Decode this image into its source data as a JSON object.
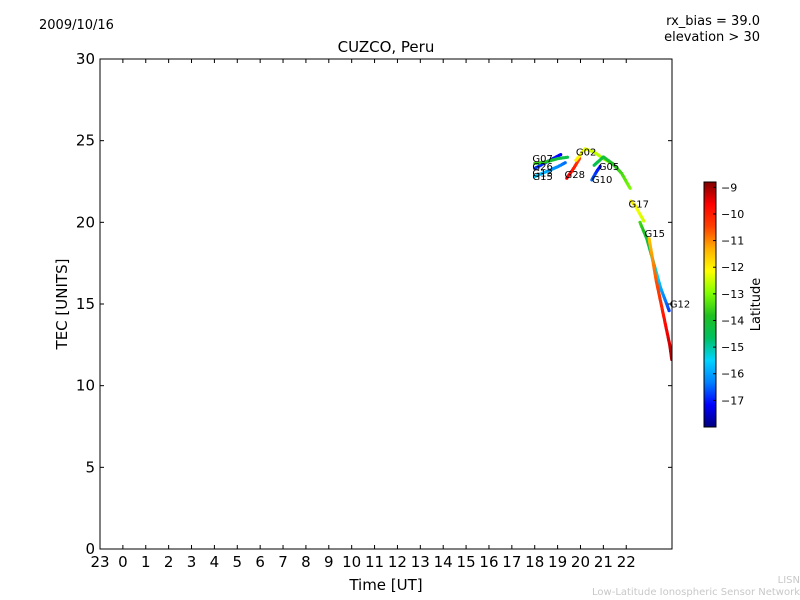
{
  "header": {
    "date": "2009/10/16",
    "title": "CUZCO, Peru",
    "rx_bias": "rx_bias = 39.0",
    "elevation": "elevation > 30"
  },
  "footer": {
    "line1": "LISN",
    "line2": "Low-Latitude Ionospheric Sensor Network"
  },
  "chart_data": {
    "type": "scatter",
    "title": "CUZCO, Peru",
    "xlabel": "Time [UT]",
    "ylabel": "TEC [UNITS]",
    "xlim": [
      -1,
      24
    ],
    "ylim": [
      0,
      30
    ],
    "x_tick_labels": [
      "23",
      "0",
      "1",
      "2",
      "3",
      "4",
      "5",
      "6",
      "7",
      "8",
      "9",
      "10",
      "11",
      "12",
      "13",
      "14",
      "15",
      "16",
      "17",
      "18",
      "19",
      "20",
      "21",
      "22"
    ],
    "y_ticks": [
      0,
      5,
      10,
      15,
      20,
      25,
      30
    ],
    "grid": false,
    "colorbar": {
      "label": "Latitude",
      "min": -18,
      "max": -8.8,
      "ticks": [
        -9,
        -10,
        -11,
        -12,
        -13,
        -14,
        -15,
        -16,
        -17
      ],
      "colors": [
        "#00007f",
        "#0000ff",
        "#0080ff",
        "#00d4ff",
        "#00c060",
        "#20c020",
        "#80ff00",
        "#ffff00",
        "#ffb000",
        "#ff4000",
        "#ff0000",
        "#7f0000"
      ]
    },
    "series": [
      {
        "name": "G07",
        "lat_start": -16.8,
        "lat_end": -17.2,
        "x": [
          18.0,
          18.4,
          18.8,
          19.2
        ],
        "y": [
          23.3,
          23.6,
          23.9,
          24.2
        ]
      },
      {
        "name": "G13",
        "lat_start": -15.5,
        "lat_end": -16.5,
        "x": [
          18.0,
          18.5,
          19.0,
          19.4
        ],
        "y": [
          22.8,
          23.1,
          23.4,
          23.7
        ]
      },
      {
        "name": "G26",
        "lat_start": -13.5,
        "lat_end": -14.5,
        "x": [
          18.0,
          18.5,
          19.0,
          19.5
        ],
        "y": [
          23.6,
          23.7,
          23.9,
          24.0
        ]
      },
      {
        "name": "G28",
        "lat_start": -9.5,
        "lat_end": -10.5,
        "x": [
          19.4,
          19.7,
          20.0
        ],
        "y": [
          22.7,
          23.3,
          24.0
        ]
      },
      {
        "name": "G02",
        "lat_start": -12.0,
        "lat_end": -13.0,
        "x": [
          19.8,
          20.2,
          20.6,
          21.0,
          21.5
        ],
        "y": [
          23.8,
          24.5,
          24.3,
          23.9,
          23.5
        ]
      },
      {
        "name": "G10",
        "lat_start": -16.5,
        "lat_end": -17.2,
        "x": [
          20.5,
          20.7,
          20.9
        ],
        "y": [
          22.6,
          23.1,
          23.5
        ]
      },
      {
        "name": "G05",
        "lat_start": -14.5,
        "lat_end": -13.0,
        "x": [
          20.6,
          21.0,
          21.4,
          21.8,
          22.2
        ],
        "y": [
          23.5,
          24.0,
          23.6,
          23.0,
          22.0
        ]
      },
      {
        "name": "G17",
        "lat_start": -12.0,
        "lat_end": -12.5,
        "x": [
          22.2,
          22.4,
          22.6,
          22.8
        ],
        "y": [
          21.3,
          21.0,
          20.5,
          20.0
        ]
      },
      {
        "name": "G15",
        "lat_start": -13.5,
        "lat_end": -16.8,
        "x": [
          22.6,
          22.9,
          23.2,
          23.5,
          23.9
        ],
        "y": [
          20.0,
          19.0,
          17.5,
          16.0,
          14.5
        ]
      },
      {
        "name": "G12",
        "lat_start": -11.5,
        "lat_end": -9.0,
        "x": [
          23.0,
          23.3,
          23.6,
          23.9,
          24.0
        ],
        "y": [
          19.0,
          16.5,
          14.5,
          12.5,
          11.5
        ]
      }
    ],
    "series_labels": [
      {
        "text": "G07",
        "x": 17.9,
        "y": 23.7
      },
      {
        "text": "G26",
        "x": 17.9,
        "y": 23.2
      },
      {
        "text": "G13",
        "x": 17.9,
        "y": 22.8
      },
      {
        "text": "G15",
        "x": 17.9,
        "y": 22.6
      },
      {
        "text": "G28",
        "x": 19.3,
        "y": 22.7
      },
      {
        "text": "G02",
        "x": 19.8,
        "y": 24.1
      },
      {
        "text": "G10",
        "x": 20.5,
        "y": 22.4
      },
      {
        "text": "G05",
        "x": 20.8,
        "y": 23.2
      },
      {
        "text": "G17",
        "x": 22.1,
        "y": 20.9
      },
      {
        "text": "G15",
        "x": 22.8,
        "y": 19.1
      },
      {
        "text": "G12",
        "x": 23.9,
        "y": 14.8
      }
    ]
  }
}
